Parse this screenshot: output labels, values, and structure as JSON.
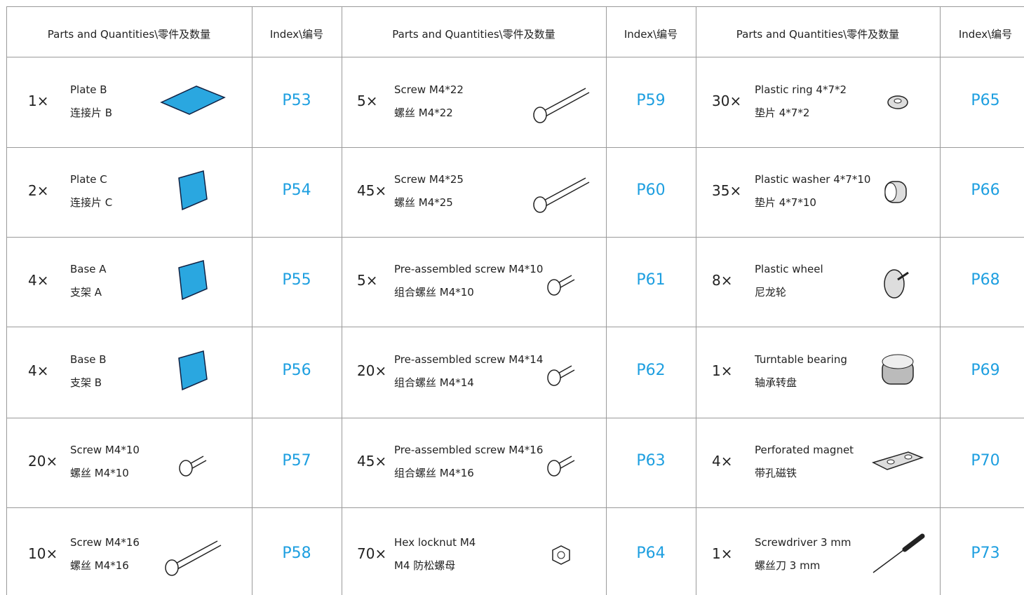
{
  "table": {
    "header": [
      "Parts and Quantities\\零件及数量",
      "Index\\编号",
      "Parts and Quantities\\零件及数量",
      "Index\\编号",
      "Parts and Quantities\\零件及数量",
      "Index\\编号"
    ],
    "rows": [
      [
        {
          "quantity": "1×",
          "name_en": "Plate B",
          "name_zh": "连接片 B",
          "index": "P53"
        },
        {
          "quantity": "5×",
          "name_en": "Screw M4*22",
          "name_zh": "螺丝 M4*22",
          "index": "P59"
        },
        {
          "quantity": "30×",
          "name_en": "Plastic ring 4*7*2",
          "name_zh": "垫片 4*7*2",
          "index": "P65"
        }
      ],
      [
        {
          "quantity": "2×",
          "name_en": "Plate C",
          "name_zh": "连接片 C",
          "index": "P54"
        },
        {
          "quantity": "45×",
          "name_en": "Screw M4*25",
          "name_zh": "螺丝 M4*25",
          "index": "P60"
        },
        {
          "quantity": "35×",
          "name_en": "Plastic washer 4*7*10",
          "name_zh": "垫片 4*7*10",
          "index": "P66"
        }
      ],
      [
        {
          "quantity": "4×",
          "name_en": "Base A",
          "name_zh": "支架 A",
          "index": "P55"
        },
        {
          "quantity": "5×",
          "name_en": "Pre-assembled screw M4*10",
          "name_zh": "组合螺丝 M4*10",
          "index": "P61"
        },
        {
          "quantity": "8×",
          "name_en": "Plastic wheel",
          "name_zh": "尼龙轮",
          "index": "P68"
        }
      ],
      [
        {
          "quantity": "4×",
          "name_en": "Base B",
          "name_zh": "支架 B",
          "index": "P56"
        },
        {
          "quantity": "20×",
          "name_en": "Pre-assembled screw M4*14",
          "name_zh": "组合螺丝 M4*14",
          "index": "P62"
        },
        {
          "quantity": "1×",
          "name_en": "Turntable bearing",
          "name_zh": "轴承转盘",
          "index": "P69"
        }
      ],
      [
        {
          "quantity": "20×",
          "name_en": "Screw M4*10",
          "name_zh": "螺丝 M4*10",
          "index": "P57"
        },
        {
          "quantity": "45×",
          "name_en": "Pre-assembled screw M4*16",
          "name_zh": "组合螺丝 M4*16",
          "index": "P63"
        },
        {
          "quantity": "4×",
          "name_en": "Perforated magnet",
          "name_zh": "带孔磁铁",
          "index": "P70"
        }
      ],
      [
        {
          "quantity": "10×",
          "name_en": "Screw M4*16",
          "name_zh": "螺丝 M4*16",
          "index": "P58"
        },
        {
          "quantity": "70×",
          "name_en": "Hex locknut M4",
          "name_zh": "M4 防松螺母",
          "index": "P64"
        },
        {
          "quantity": "1×",
          "name_en": "Screwdriver 3 mm",
          "name_zh": "螺丝刀 3 mm",
          "index": "P73"
        }
      ]
    ]
  }
}
